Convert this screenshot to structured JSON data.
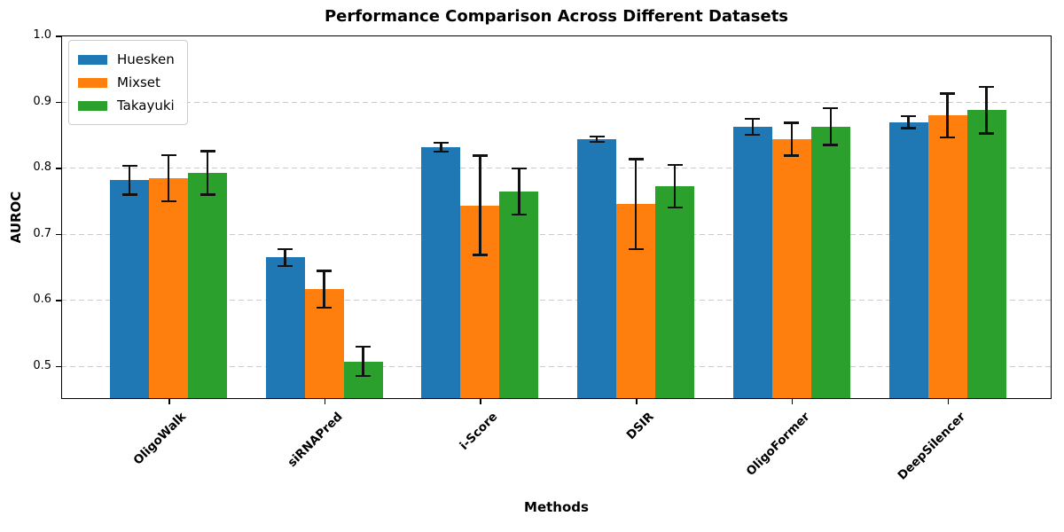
{
  "title": "Performance Comparison Across Different Datasets",
  "chart_data": {
    "type": "bar",
    "title": "Performance Comparison Across Different Datasets",
    "xlabel": "Methods",
    "ylabel": "AUROC",
    "ylim": [
      0.45,
      1.0
    ],
    "yticks": [
      0.5,
      0.6,
      0.7,
      0.8,
      0.9,
      1.0
    ],
    "grid": "horizontal-dashed",
    "legend_position": "upper-left",
    "error_bars": true,
    "categories": [
      "OligoWalk",
      "siRNAPred",
      "i-Score",
      "DSIR",
      "OligoFormer",
      "DeepSilencer"
    ],
    "series": [
      {
        "name": "Huesken",
        "color": "#1f77b4",
        "values": [
          0.781,
          0.664,
          0.831,
          0.843,
          0.862,
          0.869
        ],
        "errors": [
          0.022,
          0.013,
          0.007,
          0.004,
          0.012,
          0.009
        ]
      },
      {
        "name": "Mixset",
        "color": "#ff7f0e",
        "values": [
          0.784,
          0.616,
          0.743,
          0.745,
          0.843,
          0.879
        ],
        "errors": [
          0.035,
          0.028,
          0.075,
          0.068,
          0.025,
          0.033
        ]
      },
      {
        "name": "Takayuki",
        "color": "#2ca02c",
        "values": [
          0.792,
          0.507,
          0.764,
          0.772,
          0.862,
          0.887
        ],
        "errors": [
          0.033,
          0.022,
          0.035,
          0.032,
          0.028,
          0.035
        ]
      }
    ]
  }
}
